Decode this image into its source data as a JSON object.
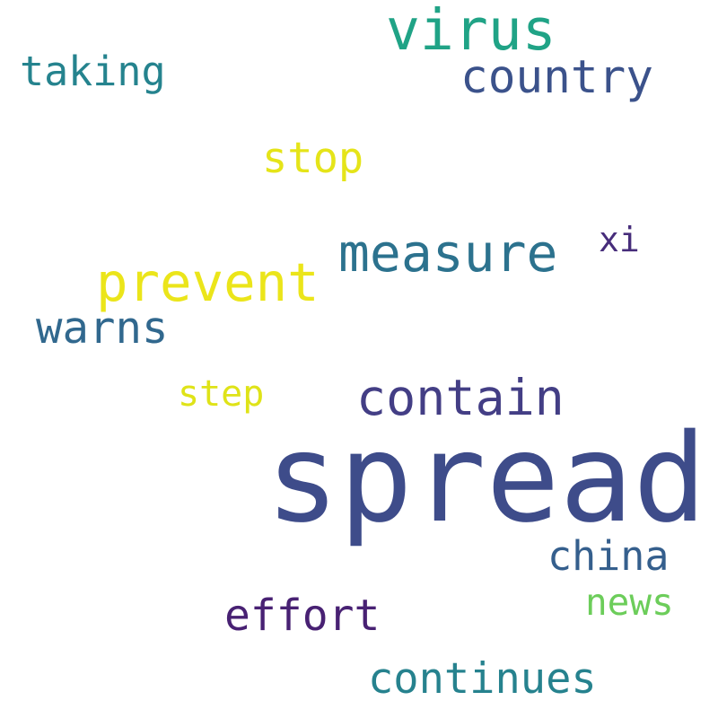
{
  "words": [
    {
      "text": "virus",
      "color": "#20a386"
    },
    {
      "text": "taking",
      "color": "#25838e"
    },
    {
      "text": "country",
      "color": "#3b528b"
    },
    {
      "text": "stop",
      "color": "#e5e419"
    },
    {
      "text": "xi",
      "color": "#472d7b"
    },
    {
      "text": "measure",
      "color": "#2c728e"
    },
    {
      "text": "prevent",
      "color": "#ebe51a"
    },
    {
      "text": "warns",
      "color": "#31688e"
    },
    {
      "text": "step",
      "color": "#dfe318"
    },
    {
      "text": "contain",
      "color": "#433e85"
    },
    {
      "text": "spread",
      "color": "#3e4c8a"
    },
    {
      "text": "china",
      "color": "#355f8d"
    },
    {
      "text": "news",
      "color": "#6ccd5a"
    },
    {
      "text": "effort",
      "color": "#482173"
    },
    {
      "text": "continues",
      "color": "#26828e"
    }
  ]
}
